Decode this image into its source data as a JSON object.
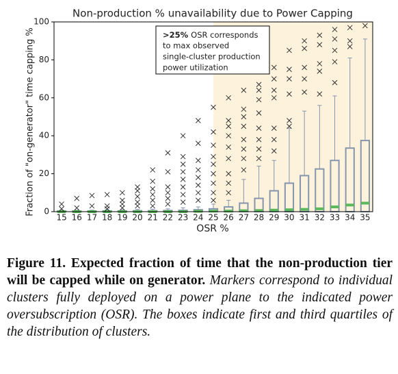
{
  "chart_data": {
    "type": "box",
    "title": "Non-production % unavailability due to Power Capping",
    "x_label": "OSR %",
    "y_label": "Fraction of \"on-generator\" time capping %",
    "categories": [
      "15",
      "16",
      "17",
      "18",
      "19",
      "20",
      "21",
      "22",
      "23",
      "24",
      "25",
      "26",
      "27",
      "28",
      "29",
      "30",
      "31",
      "32",
      "33",
      "34",
      "35"
    ],
    "q1": [
      0,
      0,
      0,
      0,
      0,
      0,
      0,
      0,
      0,
      0,
      0,
      0,
      0,
      0,
      0,
      0,
      0,
      0,
      0,
      0,
      0
    ],
    "median": [
      0,
      0,
      0,
      0,
      0,
      0,
      0,
      0,
      0,
      0.2,
      0.3,
      0.3,
      0.5,
      0.6,
      0.8,
      1,
      1.2,
      1.5,
      2.5,
      3.5,
      4.5
    ],
    "q3": [
      0.3,
      0.3,
      0.3,
      0.4,
      0.4,
      0.5,
      0.5,
      0.6,
      0.7,
      1,
      1.5,
      2.5,
      4.5,
      7,
      11,
      15,
      19,
      22.5,
      27,
      33.5,
      37.5
    ],
    "whisker_high": [
      0.8,
      0.8,
      0.8,
      1,
      1,
      1.2,
      1.3,
      1.5,
      2,
      2.5,
      4,
      6,
      17,
      24,
      27,
      44,
      53,
      56,
      61,
      81,
      91
    ],
    "outliers": [
      [
        4,
        1.5
      ],
      [
        7,
        2
      ],
      [
        8.5,
        3
      ],
      [
        9,
        3,
        1.5
      ],
      [
        10,
        6,
        4,
        2
      ],
      [
        13,
        11,
        8,
        5,
        3
      ],
      [
        22,
        16,
        12,
        9,
        6,
        3
      ],
      [
        31,
        21,
        13,
        10,
        7,
        4
      ],
      [
        40,
        29,
        25,
        21,
        17,
        13,
        9,
        5
      ],
      [
        48,
        36,
        27,
        22,
        18,
        14,
        10,
        6
      ],
      [
        55,
        42,
        35,
        29,
        25,
        20,
        15,
        10,
        6
      ],
      [
        60,
        48,
        45,
        40,
        34,
        28,
        20,
        15,
        10
      ],
      [
        64,
        54,
        50,
        45,
        38,
        33,
        28,
        22
      ],
      [
        67,
        64,
        59,
        52,
        44,
        38,
        33,
        28
      ],
      [
        76,
        70,
        64,
        60,
        44,
        38,
        32
      ],
      [
        85,
        75,
        70,
        62,
        48,
        45
      ],
      [
        90,
        86,
        76,
        70,
        63
      ],
      [
        93,
        88,
        78,
        74,
        62
      ],
      [
        96,
        91,
        85,
        79,
        68
      ],
      [
        97,
        90,
        87
      ],
      [
        98
      ]
    ],
    "box_color": "#8595ad",
    "median_color": "#5cb85c",
    "outlier_color": "#333333",
    "shade_from": "25",
    "shade_color": "#fdf2db",
    "ylim": [
      0,
      100
    ],
    "yticks": [
      0,
      20,
      40,
      60,
      80,
      100
    ],
    "annotation_bold": ">25%",
    "annotation_lines": [
      "OSR corresponds",
      "to max observed",
      "single-cluster production",
      "power utilization"
    ]
  },
  "caption": {
    "label": "Figure 11.",
    "title": "Expected fraction of time that the non-production tier will be capped while on generator.",
    "text": "Markers correspond to individual clusters fully deployed on a power plane to the indicated power oversubscription (OSR). The boxes indicate first and third quartiles of the distribution of clusters."
  }
}
